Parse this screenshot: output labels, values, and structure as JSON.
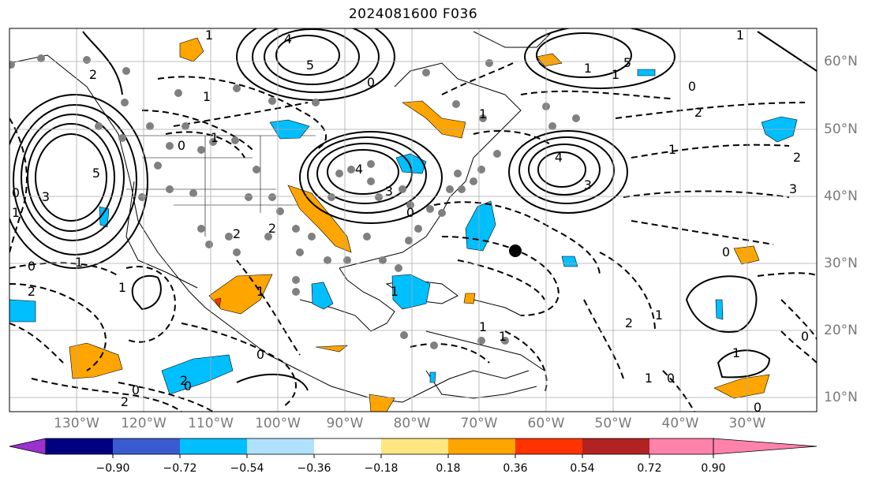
{
  "title": "2024081600 F036",
  "lon_labels": [
    "130°W",
    "120°W",
    "110°W",
    "100°W",
    "90°W",
    "80°W",
    "70°W",
    "60°W",
    "50°W",
    "40°W",
    "30°W"
  ],
  "lat_labels": [
    "60°N",
    "50°N",
    "40°N",
    "30°N",
    "20°N",
    "10°N"
  ],
  "colorbar": {
    "ticks": [
      "−0.90",
      "−0.72",
      "−0.54",
      "−0.36",
      "−0.18",
      "0.18",
      "0.36",
      "0.54",
      "0.72",
      "0.90"
    ],
    "colors": [
      "#9a32cd",
      "#000080",
      "#3a5bd0",
      "#00bfff",
      "#b0e2ff",
      "#ffffff",
      "#ffe680",
      "#ffa500",
      "#ff3300",
      "#b22222",
      "#ff82ab"
    ]
  },
  "contour_labels": [
    "1",
    "4",
    "5",
    "2",
    "0",
    "5",
    "3",
    "4",
    "5",
    "1",
    "0",
    "1",
    "2",
    "1",
    "1",
    "2",
    "0",
    "1",
    "0",
    "2",
    "1",
    "3",
    "1",
    "0",
    "2",
    "2",
    "3",
    "4",
    "3",
    "1",
    "1",
    "1",
    "0",
    "1",
    "2",
    "0",
    "0",
    "1",
    "1",
    "2",
    "0",
    "1",
    "0",
    "1",
    "1",
    "0",
    "0",
    "1",
    "2",
    "0"
  ],
  "fill_colors": {
    "orange": "#ffa500",
    "blue": "#00bfff",
    "red": "#ff3300"
  },
  "markers": {
    "gray": "#808080",
    "black": "#000000"
  }
}
